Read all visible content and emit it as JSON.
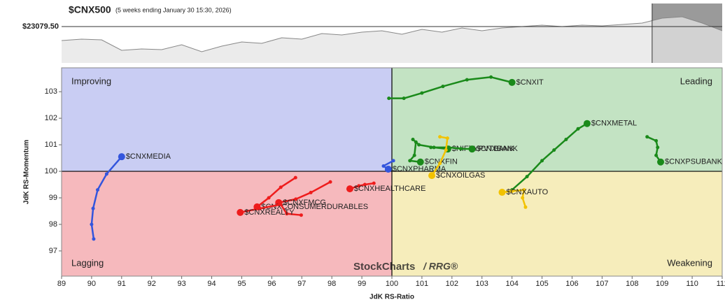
{
  "chart_data": [
    {
      "type": "area",
      "title": "$CNX500",
      "subtitle": "(5 weeks ending January 30 15:30, 2026)",
      "values": [
        22703,
        22740,
        22721,
        22439,
        22477,
        22458,
        22590,
        22401,
        22552,
        22665,
        22627,
        22778,
        22740,
        22891,
        22853,
        22928,
        22966,
        22872,
        23004,
        22928,
        23041,
        22966,
        23041,
        23079,
        23117,
        23079,
        23117,
        23098,
        23135,
        23173,
        23305,
        23342,
        23173,
        22966
      ],
      "color": "#888888",
      "highlight_start": 30,
      "ylim": [
        22100,
        23700
      ],
      "yticks": [
        {
          "value": 23079.5,
          "label": "$23079.50"
        }
      ]
    },
    {
      "type": "rrg",
      "x_label": "JdK RS-Ratio",
      "y_label": "JdK RS-Momentum",
      "quadrants": [
        "Improving",
        "Leading",
        "Lagging",
        "Weakening"
      ],
      "watermark": [
        "StockCharts",
        "/ RRG®"
      ],
      "xlim": [
        89,
        111
      ],
      "ylim": [
        96.05,
        103.9
      ],
      "xticks": [
        89,
        90,
        91,
        92,
        93,
        94,
        95,
        96,
        97,
        98,
        99,
        100,
        101,
        102,
        103,
        104,
        105,
        106,
        107,
        108,
        109,
        110,
        111
      ],
      "yticks": [
        97,
        98,
        99,
        100,
        101,
        102,
        103
      ],
      "series": [
        {
          "name": "$CNXIT",
          "color": "#1a8a1a",
          "x": [
            99.9,
            100.4,
            101.0,
            101.7,
            102.5,
            103.3,
            104.0
          ],
          "values": [
            102.75,
            102.75,
            102.95,
            103.2,
            103.45,
            103.55,
            103.35
          ]
        },
        {
          "name": "$CNXMETAL",
          "color": "#1a8a1a",
          "x": [
            104.0,
            104.5,
            105.0,
            105.4,
            105.8,
            106.2,
            106.5
          ],
          "values": [
            99.3,
            99.8,
            100.4,
            100.8,
            101.2,
            101.6,
            101.8
          ]
        },
        {
          "name": "$CNXPSUBANK",
          "color": "#1a8a1a",
          "x": [
            108.5,
            108.8,
            108.85,
            108.8,
            108.95
          ],
          "values": [
            101.3,
            101.15,
            100.9,
            100.6,
            100.35
          ]
        },
        {
          "name": "$NIFTYPVTBANK",
          "color": "#1a8a1a",
          "x": [
            100.7,
            100.9,
            101.4,
            101.86
          ],
          "values": [
            101.2,
            101.0,
            100.9,
            100.84
          ]
        },
        {
          "name": "$CNXBANK",
          "color": "#1a8a1a",
          "x": [
            101.3,
            101.9,
            102.3,
            102.67
          ],
          "values": [
            100.9,
            100.9,
            100.85,
            100.84
          ]
        },
        {
          "name": "$CNXFIN",
          "color": "#1a8a1a",
          "x": [
            100.8,
            100.75,
            100.6,
            100.95
          ],
          "values": [
            101.1,
            100.6,
            100.4,
            100.35
          ]
        },
        {
          "name": "$CNXMEDIA",
          "color": "#3355dd",
          "x": [
            90.07,
            90.0,
            90.05,
            90.2,
            90.5,
            91.0
          ],
          "values": [
            97.45,
            98.0,
            98.6,
            99.3,
            99.9,
            100.55
          ]
        },
        {
          "name": "$CNXPHARMA",
          "color": "#3355dd",
          "x": [
            100.05,
            99.72,
            99.88
          ],
          "values": [
            100.4,
            100.2,
            100.08
          ]
        },
        {
          "name": "$CNXOILGAS",
          "color": "#f2c200",
          "x": [
            101.6,
            101.85,
            101.8,
            101.6,
            101.33
          ],
          "values": [
            101.3,
            101.25,
            100.8,
            100.3,
            99.84
          ]
        },
        {
          "name": "$CNXAUTO",
          "color": "#f2c200",
          "x": [
            104.45,
            104.35,
            104.4,
            104.0,
            103.67
          ],
          "values": [
            98.65,
            99.0,
            99.3,
            99.25,
            99.21
          ]
        },
        {
          "name": "$CNXHEALTHCARE",
          "color": "#ee1c1c",
          "x": [
            99.4,
            99.1,
            98.9,
            98.6
          ],
          "values": [
            99.55,
            99.5,
            99.45,
            99.34
          ]
        },
        {
          "name": "$CNXFMCG",
          "color": "#ee1c1c",
          "x": [
            97.95,
            97.3,
            96.8,
            96.23
          ],
          "values": [
            99.6,
            99.2,
            98.95,
            98.82
          ]
        },
        {
          "name": "$CNXCONSUMERDURABLES",
          "color": "#ee1c1c",
          "x": [
            96.79,
            96.3,
            95.9,
            95.51
          ],
          "values": [
            99.76,
            99.4,
            99.0,
            98.66
          ]
        },
        {
          "name": "$CNXREALTY",
          "color": "#ee1c1c",
          "x": [
            96.98,
            96.5,
            96.3,
            95.6,
            94.95
          ],
          "values": [
            98.35,
            98.4,
            98.75,
            98.6,
            98.45
          ]
        }
      ]
    }
  ]
}
